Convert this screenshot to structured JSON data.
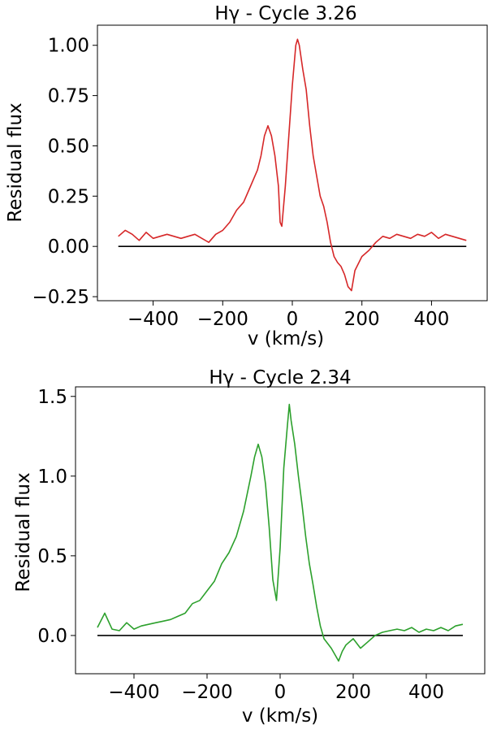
{
  "chart_data": [
    {
      "type": "line",
      "title": "Hγ - Cycle 3.26",
      "xlabel": "v (km/s)",
      "ylabel": "Residual flux",
      "xlim": [
        -560,
        560
      ],
      "ylim": [
        -0.27,
        1.1
      ],
      "xticks": [
        -400,
        -200,
        0,
        200,
        400
      ],
      "xtick_labels": [
        "−400",
        "−200",
        "0",
        "200",
        "400"
      ],
      "yticks": [
        -0.25,
        0,
        0.25,
        0.5,
        0.75,
        1.0
      ],
      "ytick_labels": [
        "−0.25",
        "0.00",
        "0.25",
        "0.50",
        "0.75",
        "1.00"
      ],
      "grid": false,
      "baseline": {
        "y": 0,
        "x_range": [
          -500,
          500
        ],
        "color": "#000000"
      },
      "series": [
        {
          "color": "#d62728",
          "x": [
            -500,
            -480,
            -460,
            -440,
            -420,
            -400,
            -380,
            -360,
            -340,
            -320,
            -300,
            -280,
            -260,
            -240,
            -220,
            -200,
            -180,
            -160,
            -140,
            -120,
            -100,
            -90,
            -80,
            -70,
            -60,
            -50,
            -40,
            -35,
            -30,
            -20,
            -10,
            0,
            10,
            15,
            20,
            30,
            40,
            50,
            60,
            70,
            80,
            90,
            100,
            110,
            120,
            130,
            140,
            150,
            160,
            170,
            180,
            200,
            220,
            240,
            260,
            280,
            300,
            320,
            340,
            360,
            380,
            400,
            420,
            440,
            460,
            480,
            500
          ],
          "y": [
            0.05,
            0.08,
            0.06,
            0.03,
            0.07,
            0.04,
            0.05,
            0.06,
            0.05,
            0.04,
            0.05,
            0.06,
            0.04,
            0.02,
            0.06,
            0.08,
            0.12,
            0.18,
            0.22,
            0.3,
            0.38,
            0.45,
            0.55,
            0.6,
            0.55,
            0.45,
            0.3,
            0.12,
            0.1,
            0.3,
            0.55,
            0.8,
            1.0,
            1.03,
            1.0,
            0.88,
            0.78,
            0.6,
            0.45,
            0.35,
            0.25,
            0.2,
            0.12,
            0.02,
            -0.05,
            -0.08,
            -0.1,
            -0.14,
            -0.2,
            -0.22,
            -0.12,
            -0.05,
            -0.02,
            0.02,
            0.05,
            0.04,
            0.06,
            0.05,
            0.04,
            0.06,
            0.05,
            0.07,
            0.04,
            0.06,
            0.05,
            0.04,
            0.03
          ]
        }
      ]
    },
    {
      "type": "line",
      "title": "Hγ - Cycle 2.34",
      "xlabel": "v (km/s)",
      "ylabel": "Residual flux",
      "xlim": [
        -560,
        560
      ],
      "ylim": [
        -0.24,
        1.56
      ],
      "xticks": [
        -400,
        -200,
        0,
        200,
        400
      ],
      "xtick_labels": [
        "−400",
        "−200",
        "0",
        "200",
        "400"
      ],
      "yticks": [
        0,
        0.5,
        1.0,
        1.5
      ],
      "ytick_labels": [
        "0.0",
        "0.5",
        "1.0",
        "1.5"
      ],
      "grid": false,
      "baseline": {
        "y": 0,
        "x_range": [
          -500,
          500
        ],
        "color": "#000000"
      },
      "series": [
        {
          "color": "#2ca02c",
          "x": [
            -500,
            -480,
            -460,
            -440,
            -420,
            -400,
            -380,
            -360,
            -340,
            -320,
            -300,
            -280,
            -260,
            -240,
            -220,
            -200,
            -180,
            -160,
            -140,
            -120,
            -100,
            -80,
            -70,
            -60,
            -50,
            -40,
            -30,
            -20,
            -10,
            0,
            10,
            20,
            25,
            30,
            40,
            50,
            60,
            70,
            80,
            90,
            100,
            110,
            120,
            130,
            140,
            150,
            160,
            170,
            180,
            200,
            220,
            240,
            260,
            280,
            300,
            320,
            340,
            360,
            380,
            400,
            420,
            440,
            460,
            480,
            500
          ],
          "y": [
            0.05,
            0.14,
            0.04,
            0.03,
            0.08,
            0.04,
            0.06,
            0.07,
            0.08,
            0.09,
            0.1,
            0.12,
            0.14,
            0.2,
            0.22,
            0.28,
            0.34,
            0.45,
            0.52,
            0.62,
            0.78,
            1.0,
            1.12,
            1.2,
            1.12,
            0.95,
            0.68,
            0.35,
            0.22,
            0.55,
            1.05,
            1.32,
            1.45,
            1.35,
            1.2,
            1.0,
            0.82,
            0.62,
            0.45,
            0.32,
            0.18,
            0.06,
            -0.02,
            -0.05,
            -0.08,
            -0.12,
            -0.16,
            -0.1,
            -0.06,
            -0.02,
            -0.08,
            -0.04,
            0.0,
            0.02,
            0.03,
            0.04,
            0.03,
            0.05,
            0.02,
            0.04,
            0.03,
            0.05,
            0.03,
            0.06,
            0.07
          ]
        }
      ]
    }
  ]
}
